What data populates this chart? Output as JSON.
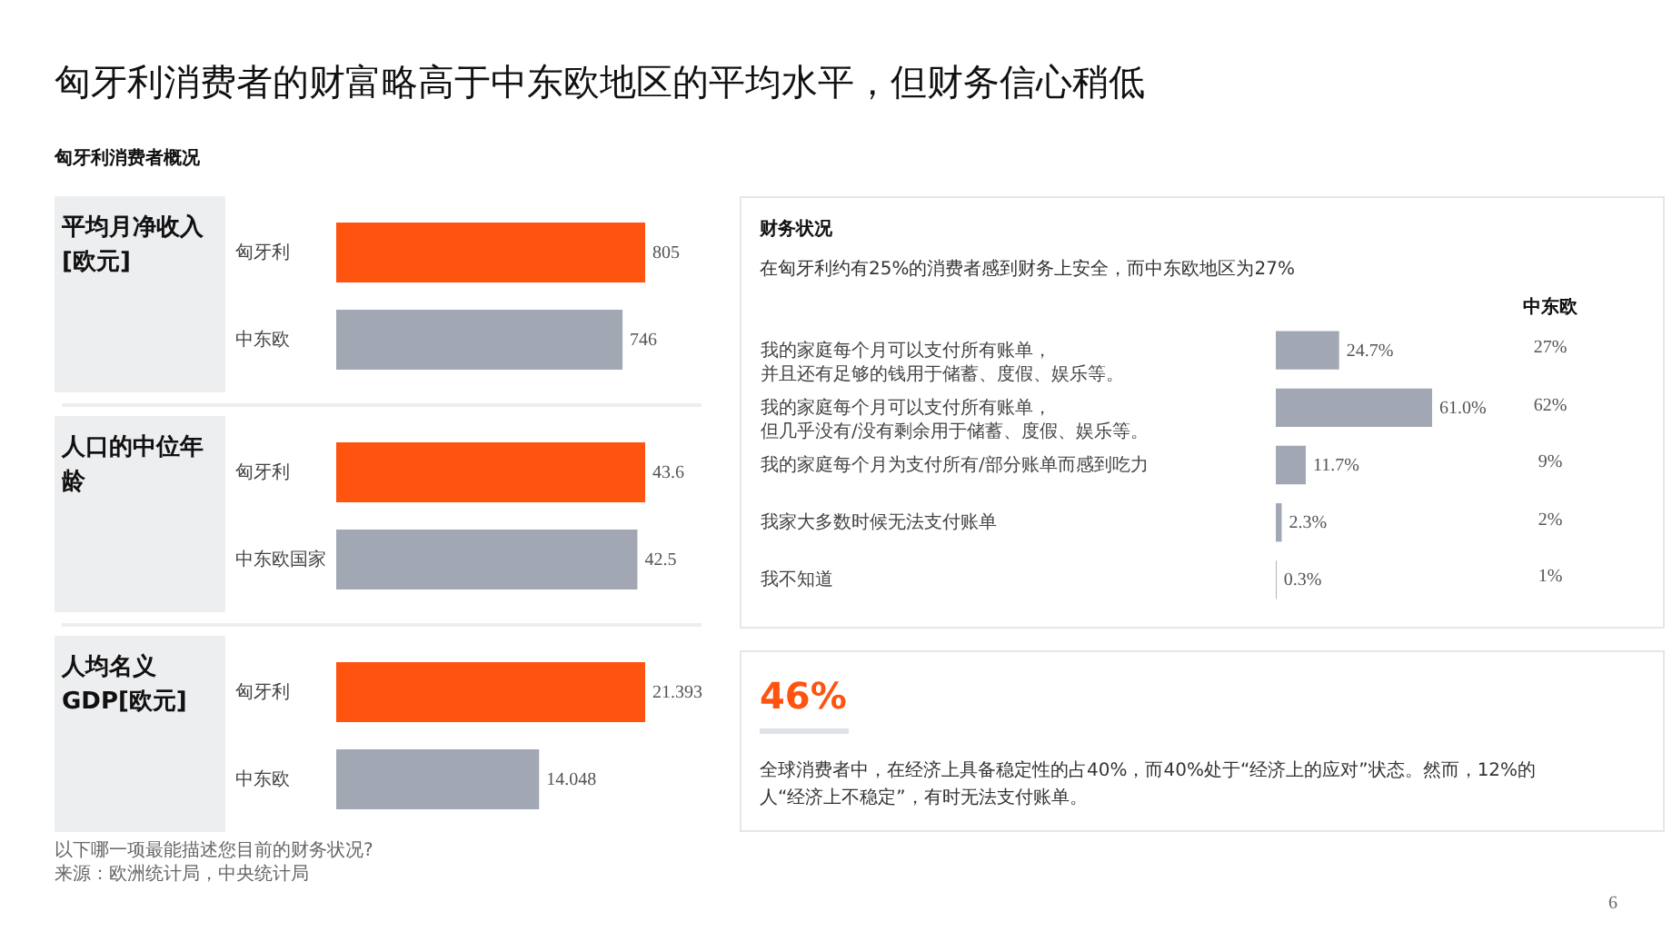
{
  "chart_data": [
    {
      "type": "other",
      "title": "匈牙利消费者的财富略高于中东欧地区的平均水平，但财务信心稍低",
      "subtitle": "匈牙利消费者概况"
    },
    {
      "type": "bar",
      "orientation": "horizontal",
      "title": "平均月净收入 [欧元]",
      "categories": [
        "匈牙利",
        "中东欧"
      ],
      "values": [
        805,
        746
      ],
      "colors": [
        "#ff5310",
        "#a1a8b3"
      ],
      "data_labels": true
    },
    {
      "type": "bar",
      "orientation": "horizontal",
      "title": "人口的中位年龄",
      "categories": [
        "匈牙利",
        "中东欧国家"
      ],
      "values": [
        43.6,
        42.5
      ],
      "colors": [
        "#ff5310",
        "#a1a8b3"
      ],
      "data_labels": true
    },
    {
      "type": "bar",
      "orientation": "horizontal",
      "title": "人均名义GDP[欧元]",
      "categories": [
        "匈牙利",
        "中东欧"
      ],
      "values": [
        21.393,
        14.048
      ],
      "colors": [
        "#ff5310",
        "#a1a8b3"
      ],
      "data_labels": true
    },
    {
      "type": "bar",
      "orientation": "horizontal",
      "title": "财务状况",
      "subtitle": "在匈牙利约有25%的消费者感到财务上安全，而中东欧地区为27%",
      "categories": [
        "我的家庭每个月可以支付所有账单，并且还有足够的钱用于储蓄、度假、娱乐等。",
        "我的家庭每个月可以支付所有账单，但几乎没有/没有剩余用于储蓄、度假、娱乐等。",
        "我的家庭每个月为支付所有/部分账单而感到吃力",
        "我家大多数时候无法支付账单",
        "我不知道"
      ],
      "series": [
        {
          "color": "#a1a8b3",
          "values": [
            24.7,
            61.0,
            11.7,
            2.3,
            0.3
          ],
          "value_labels": [
            "24.7%",
            "61.0%",
            "11.7%",
            "2.3%",
            "0.3%"
          ]
        }
      ]
    },
    {
      "type": "other",
      "title": "中东欧",
      "values": [
        27,
        62,
        9,
        2,
        1
      ],
      "value_labels": [
        "27%",
        "62%",
        "9%",
        "2%",
        "1%"
      ]
    },
    {
      "type": "other",
      "title": "46%",
      "annotations": [
        "全球消费者中，在经济上具备稳定性的占40%，而40%处于“经济上的应对”状态。然而，12%的人“经济上不稳定”，有时无法支付账单。"
      ]
    },
    {
      "type": "other",
      "annotations": [
        "以下哪一项最能描述您目前的财务状况?",
        "来源：欧洲统计局，中央统计局",
        "6"
      ]
    }
  ]
}
